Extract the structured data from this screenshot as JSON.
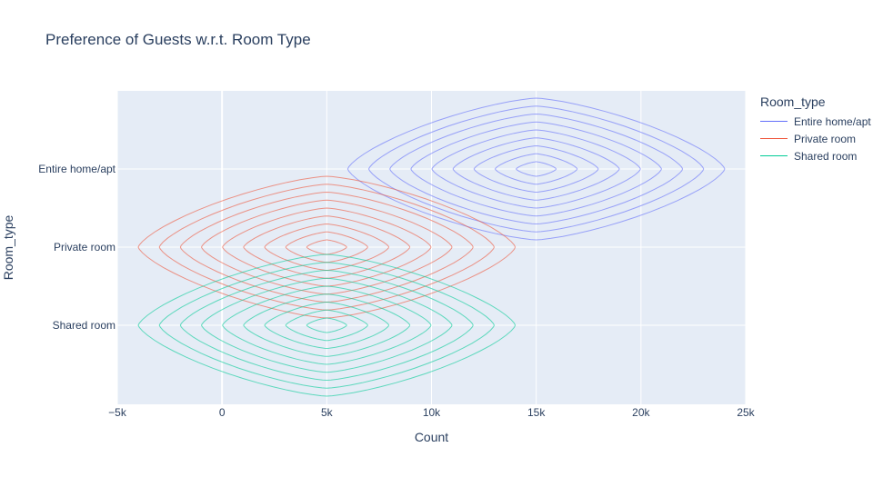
{
  "chart_data": {
    "type": "contour",
    "title": "Preference of Guests w.r.t. Room Type",
    "xlabel": "Count",
    "ylabel": "Room_type",
    "xlim": [
      -5000,
      25000
    ],
    "x_ticks": [
      -5000,
      0,
      5000,
      10000,
      15000,
      20000,
      25000
    ],
    "x_tick_labels": [
      "−5k",
      "0",
      "5k",
      "10k",
      "15k",
      "20k",
      "25k"
    ],
    "categories": [
      "Entire home/apt",
      "Private room",
      "Shared room"
    ],
    "legend_title": "Room_type",
    "legend_position": "right",
    "grid": true,
    "series": [
      {
        "name": "Entire home/apt",
        "color": "#636efa",
        "center_x": 15000,
        "outer_x_halfwidth": 9000,
        "levels": 9
      },
      {
        "name": "Private room",
        "color": "#ef553b",
        "center_x": 5000,
        "outer_x_halfwidth": 9000,
        "levels": 9
      },
      {
        "name": "Shared room",
        "color": "#00cc96",
        "center_x": 5000,
        "outer_x_halfwidth": 9000,
        "levels": 9
      }
    ]
  }
}
